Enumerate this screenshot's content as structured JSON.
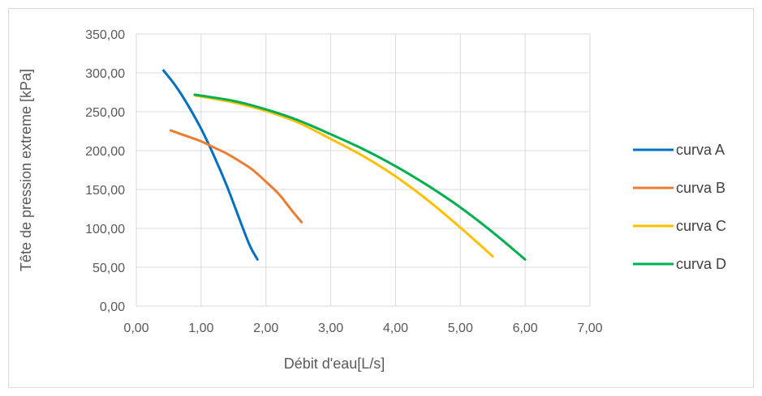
{
  "chart_data": {
    "type": "line",
    "xlabel": "Débit d'eau[L/s]",
    "ylabel": "Tête de pression extreme [kPa]",
    "xlim": [
      0,
      7
    ],
    "ylim": [
      0,
      350
    ],
    "x_ticks": [
      "0,00",
      "1,00",
      "2,00",
      "3,00",
      "4,00",
      "5,00",
      "6,00",
      "7,00"
    ],
    "y_ticks": [
      "0,00",
      "50,00",
      "100,00",
      "150,00",
      "200,00",
      "250,00",
      "300,00",
      "350,00"
    ],
    "grid": "major both axes",
    "legend_position": "right",
    "series": [
      {
        "name": "curva A",
        "color": "#0070C0",
        "x": [
          0.42,
          0.6,
          0.8,
          1.0,
          1.2,
          1.4,
          1.6,
          1.75,
          1.87
        ],
        "y": [
          303,
          284,
          258,
          228,
          193,
          154,
          110,
          78,
          60
        ]
      },
      {
        "name": "curva B",
        "color": "#ED7D31",
        "x": [
          0.53,
          0.8,
          1.0,
          1.2,
          1.4,
          1.6,
          1.8,
          2.0,
          2.2,
          2.4,
          2.55
        ],
        "y": [
          226,
          218,
          212,
          204,
          196,
          186,
          175,
          160,
          144,
          123,
          108
        ]
      },
      {
        "name": "curva C",
        "color": "#FFC000",
        "x": [
          0.9,
          1.5,
          2.0,
          2.5,
          3.0,
          3.5,
          4.0,
          4.5,
          5.0,
          5.5
        ],
        "y": [
          271,
          262,
          251,
          236,
          215,
          193,
          167,
          136,
          101,
          64
        ]
      },
      {
        "name": "curva D",
        "color": "#00B050",
        "x": [
          0.9,
          1.5,
          2.0,
          2.5,
          3.0,
          3.5,
          4.0,
          4.5,
          5.0,
          5.5,
          6.0
        ],
        "y": [
          272,
          264,
          253,
          239,
          221,
          202,
          180,
          155,
          127,
          95,
          60
        ]
      }
    ]
  }
}
